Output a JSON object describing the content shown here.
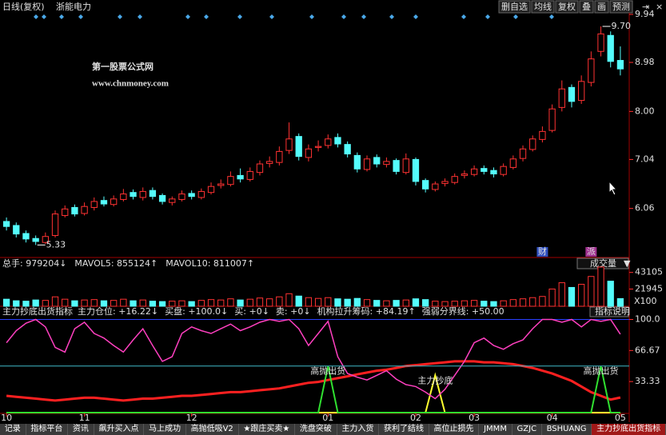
{
  "toolbar": {
    "period": "日线(复权)",
    "stock": "浙能电力",
    "buttons": [
      "删自选",
      "均线",
      "复权",
      "叠",
      "画",
      "预测"
    ]
  },
  "price_panel": {
    "watermark": [
      "第一股票公式网",
      "www.chnmoney.com"
    ],
    "ylim": [
      5.08,
      9.94
    ],
    "yticks": [
      6.06,
      7.04,
      {
        "value": 8,
        "label": "8.00"
      },
      8.98,
      9.94
    ],
    "up_color": "#ff3232",
    "down_color": "#54fcfc",
    "opens": [
      5.8,
      5.72,
      5.56,
      5.46,
      5.38,
      5.52,
      5.92,
      6.08,
      5.96,
      6.08,
      6.22,
      6.14,
      6.24,
      6.38,
      6.28,
      6.42,
      6.32,
      6.18,
      6.24,
      6.36,
      6.28,
      6.38,
      6.52,
      6.54,
      6.72,
      6.64,
      6.78,
      6.96,
      6.98,
      7.22,
      7.5,
      7.08,
      7.28,
      7.32,
      7.48,
      7.34,
      7.12,
      6.84,
      7.08,
      6.94,
      7.02,
      6.78,
      7.04,
      6.62,
      6.44,
      6.56,
      6.58,
      6.72,
      6.74,
      6.86,
      6.82,
      6.74,
      6.88,
      7.06,
      7.24,
      7.44,
      7.62,
      8.08,
      8.48,
      8.22,
      8.58,
      9.2,
      9.52,
      9.02
    ],
    "highs": [
      5.88,
      5.78,
      5.62,
      5.52,
      5.58,
      6.02,
      6.12,
      6.14,
      6.18,
      6.28,
      6.3,
      6.32,
      6.45,
      6.44,
      6.48,
      6.48,
      6.36,
      6.3,
      6.42,
      6.42,
      6.46,
      6.58,
      6.64,
      6.8,
      6.86,
      6.88,
      7.02,
      7.1,
      7.3,
      7.78,
      7.56,
      7.34,
      7.42,
      7.54,
      7.56,
      7.4,
      7.18,
      7.12,
      7.14,
      7.08,
      7.06,
      7.16,
      7.08,
      6.66,
      6.6,
      6.66,
      6.76,
      6.82,
      6.92,
      6.92,
      6.88,
      6.96,
      7.12,
      7.32,
      7.52,
      7.7,
      8.14,
      8.62,
      8.54,
      8.72,
      9.2,
      9.7,
      9.6,
      9.3
    ],
    "lows": [
      5.62,
      5.48,
      5.38,
      5.33,
      5.35,
      5.48,
      5.88,
      5.9,
      5.92,
      6.02,
      6.1,
      6.1,
      6.2,
      6.24,
      6.22,
      6.24,
      6.14,
      6.12,
      6.2,
      6.24,
      6.24,
      6.34,
      6.46,
      6.5,
      6.58,
      6.6,
      6.72,
      6.88,
      6.92,
      7.15,
      7.02,
      7.0,
      7.2,
      7.26,
      7.28,
      7.08,
      6.78,
      6.8,
      6.88,
      6.88,
      6.74,
      6.74,
      6.52,
      6.38,
      6.4,
      6.5,
      6.54,
      6.66,
      6.7,
      6.74,
      6.68,
      6.7,
      6.84,
      7.0,
      7.2,
      7.38,
      7.58,
      8.0,
      8.08,
      8.15,
      8.5,
      9.1,
      8.88,
      8.72
    ],
    "closes": [
      5.7,
      5.55,
      5.45,
      5.4,
      5.5,
      5.95,
      6.05,
      5.95,
      6.1,
      6.2,
      6.15,
      6.25,
      6.35,
      6.3,
      6.4,
      6.3,
      6.2,
      6.25,
      6.35,
      6.3,
      6.4,
      6.5,
      6.55,
      6.7,
      6.65,
      6.8,
      6.95,
      7.0,
      7.2,
      7.45,
      7.1,
      7.25,
      7.3,
      7.45,
      7.35,
      7.15,
      6.85,
      7.05,
      6.95,
      7.0,
      6.8,
      7.05,
      6.6,
      6.45,
      6.55,
      6.6,
      6.7,
      6.75,
      6.85,
      6.8,
      6.75,
      6.9,
      7.05,
      7.25,
      7.45,
      7.6,
      8.05,
      8.45,
      8.2,
      8.6,
      9.05,
      9.55,
      9.0,
      8.85
    ],
    "high_label": {
      "index": 61,
      "text": "9.70"
    },
    "low_label": {
      "index": 3,
      "text": "5.33"
    },
    "markers": [
      {
        "text": "财",
        "index": 55,
        "color": "#3050c0"
      },
      {
        "text": "派",
        "index": 60,
        "color": "#a03090"
      }
    ]
  },
  "volume_panel": {
    "readouts": [
      {
        "text": "总手: 979204↓",
        "color": "#ff4040"
      },
      {
        "text": "MAVOL5: 855124↑",
        "color": "#f0f0f0"
      },
      {
        "text": "MAVOL10: 811007↑",
        "color": "#f0f0f0"
      }
    ],
    "dropdown": "成交量",
    "unit_label": "X100",
    "ylim": [
      0,
      53000
    ],
    "yticks": [
      21945,
      43105
    ],
    "values": [
      9000,
      7000,
      6500,
      8000,
      7500,
      12000,
      9000,
      7000,
      8000,
      8500,
      7000,
      7500,
      9000,
      7000,
      8000,
      6500,
      6000,
      6500,
      7000,
      6000,
      7500,
      8500,
      8000,
      9500,
      8000,
      9000,
      10500,
      9500,
      12000,
      16000,
      13000,
      11000,
      10000,
      11000,
      9500,
      9000,
      10000,
      8500,
      7500,
      7000,
      7500,
      8000,
      9500,
      8500,
      6500,
      6000,
      6500,
      7000,
      7500,
      6500,
      6000,
      7000,
      8500,
      9500,
      11000,
      12500,
      22000,
      30000,
      24000,
      28000,
      38000,
      50000,
      32000,
      9792
    ]
  },
  "indicator_panel": {
    "title": "主力抄底出货指标",
    "button": "指标说明",
    "ylim": [
      0,
      103
    ],
    "yticks": [
      {
        "value": 100,
        "label": "100.0"
      },
      66.67,
      33.33
    ],
    "series": [
      {
        "label": "主力仓位: +16.22↓",
        "color": "#ff2020",
        "width": 3,
        "values": [
          18,
          17,
          16,
          15,
          14,
          13,
          14,
          15,
          16,
          16,
          15,
          14,
          13,
          14,
          15,
          15,
          16,
          17,
          18,
          18,
          19,
          20,
          21,
          22,
          22,
          23,
          24,
          25,
          26,
          28,
          30,
          32,
          33,
          35,
          37,
          39,
          41,
          43,
          45,
          46,
          48,
          50,
          51,
          52,
          53,
          54,
          55,
          55,
          55,
          54,
          54,
          53,
          52,
          50,
          48,
          45,
          42,
          38,
          34,
          28,
          22,
          18,
          14,
          16.22
        ]
      },
      {
        "label": "买盘: +100.0↓",
        "color": "#2a40ff",
        "width": 1,
        "level": 100
      },
      {
        "label": "买: +0↓",
        "color": "#ffff30",
        "label_color": "#f0f0f0",
        "width": 2,
        "values": [
          0,
          0,
          0,
          0,
          0,
          0,
          0,
          0,
          0,
          0,
          0,
          0,
          0,
          0,
          0,
          0,
          0,
          0,
          0,
          0,
          0,
          0,
          0,
          0,
          0,
          0,
          0,
          0,
          0,
          0,
          0,
          0,
          0,
          0,
          0,
          0,
          0,
          0,
          0,
          0,
          0,
          0,
          0,
          0,
          40,
          0,
          0,
          0,
          0,
          0,
          0,
          0,
          0,
          0,
          0,
          0,
          0,
          0,
          0,
          0,
          0,
          0,
          0,
          0
        ]
      },
      {
        "label": "卖: +0↓",
        "color": "#30e030",
        "label_color": "#f0f0f0",
        "width": 2,
        "values": [
          0,
          0,
          0,
          0,
          0,
          0,
          0,
          0,
          0,
          0,
          0,
          0,
          0,
          0,
          0,
          0,
          0,
          0,
          0,
          0,
          0,
          0,
          0,
          0,
          0,
          0,
          0,
          0,
          0,
          0,
          0,
          0,
          0,
          50,
          0,
          0,
          0,
          0,
          0,
          0,
          0,
          0,
          0,
          0,
          0,
          0,
          0,
          0,
          0,
          0,
          0,
          0,
          0,
          0,
          0,
          0,
          0,
          0,
          0,
          0,
          0,
          50,
          0,
          0
        ]
      },
      {
        "label": "机构拉升筹码: +84.19↑",
        "color": "#ff40c0",
        "width": 1.5,
        "values": [
          75,
          88,
          96,
          100,
          92,
          70,
          65,
          90,
          97,
          85,
          80,
          72,
          65,
          78,
          90,
          72,
          55,
          60,
          85,
          92,
          88,
          85,
          90,
          95,
          88,
          92,
          97,
          100,
          98,
          100,
          90,
          72,
          85,
          98,
          60,
          42,
          38,
          35,
          40,
          45,
          36,
          30,
          28,
          22,
          15,
          25,
          40,
          55,
          75,
          80,
          72,
          68,
          74,
          78,
          90,
          100,
          100,
          97,
          100,
          92,
          100,
          98,
          100,
          84.19
        ]
      },
      {
        "label": "强弱分界线: +50.00",
        "color": "#40b8c8",
        "width": 1,
        "level": 50
      }
    ],
    "annotations": [
      {
        "text": "高抛出货",
        "index": 33,
        "color": "#30e030"
      },
      {
        "text": "主力抄底",
        "index": 44,
        "color": "#ffff30"
      },
      {
        "text": "高抛出货",
        "index": 61,
        "color": "#30e030"
      }
    ]
  },
  "x_axis": [
    {
      "label": "10",
      "index": 0
    },
    {
      "label": "11",
      "index": 8
    },
    {
      "label": "12",
      "index": 19
    },
    {
      "label": "01",
      "index": 33
    },
    {
      "label": "02",
      "index": 42
    },
    {
      "label": "03",
      "index": 48
    },
    {
      "label": "04",
      "index": 56
    },
    {
      "label": "05",
      "index": 63
    }
  ],
  "tabs": [
    "记录",
    "指标平台",
    "资讯",
    "飙升买入点",
    "马上成功",
    "高抛低吸V2",
    "★跟庄买卖★",
    "洗盘突破",
    "主力入货",
    "获利了结线",
    "高位止损先",
    "JMMM",
    "GZJC",
    "BSHUANG",
    "主力抄底出货指标"
  ],
  "active_tab": 14
}
